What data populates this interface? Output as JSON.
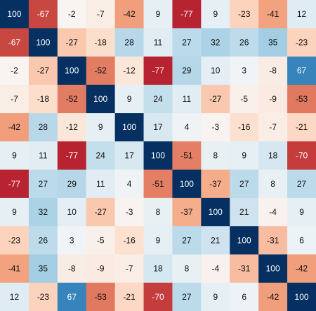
{
  "chart_data": {
    "type": "heatmap",
    "title": "",
    "xlabel": "",
    "ylabel": "",
    "value_range": [
      -100,
      100
    ],
    "colors": {
      "positive": "#053061",
      "neutral": "#f7f7f7",
      "negative": "#67001f"
    },
    "grid": false,
    "legend": "none",
    "rows": 11,
    "cols": 11,
    "values": [
      [
        100,
        -67,
        -2,
        -7,
        -42,
        9,
        -77,
        9,
        -23,
        -41,
        12
      ],
      [
        -67,
        100,
        -27,
        -18,
        28,
        11,
        27,
        32,
        26,
        35,
        -23
      ],
      [
        -2,
        -27,
        100,
        -52,
        -12,
        -77,
        29,
        10,
        3,
        -8,
        67
      ],
      [
        -7,
        -18,
        -52,
        100,
        9,
        24,
        11,
        -27,
        -5,
        -9,
        -53
      ],
      [
        -42,
        28,
        -12,
        9,
        100,
        17,
        4,
        -3,
        -16,
        -7,
        -21
      ],
      [
        9,
        11,
        -77,
        24,
        17,
        100,
        -51,
        8,
        9,
        18,
        -70
      ],
      [
        -77,
        27,
        29,
        11,
        4,
        -51,
        100,
        -37,
        27,
        8,
        27
      ],
      [
        9,
        32,
        10,
        -27,
        -3,
        8,
        -37,
        100,
        21,
        -4,
        9
      ],
      [
        -23,
        26,
        3,
        -5,
        -16,
        9,
        27,
        21,
        100,
        -31,
        6
      ],
      [
        -41,
        35,
        -8,
        -9,
        -7,
        18,
        8,
        -4,
        -31,
        100,
        -42
      ],
      [
        12,
        -23,
        67,
        -53,
        -21,
        -70,
        27,
        9,
        6,
        -42,
        100
      ]
    ]
  }
}
